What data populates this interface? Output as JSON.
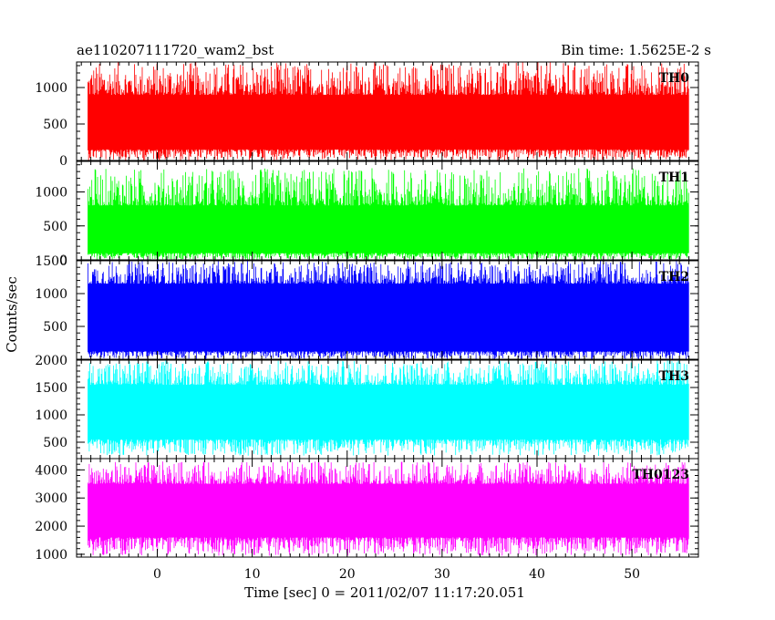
{
  "chart_data": {
    "type": "line",
    "title_left": "ae110207111720_wam2_bst",
    "title_right": "Bin time: 1.5625E-2 s",
    "xlabel": "Time [sec] 0 = 2011/02/07 11:17:20.051",
    "ylabel": "Counts/sec",
    "xlim": [
      -8.5,
      57
    ],
    "data_x_range": [
      -7.3,
      56
    ],
    "x_ticks": [
      0,
      10,
      20,
      30,
      40,
      50
    ],
    "x_tick_labels": [
      "0",
      "10",
      "20",
      "30",
      "40",
      "50"
    ],
    "panels": [
      {
        "label": "TH0",
        "color": "#ff0000",
        "ylim": [
          0,
          1350
        ],
        "y_ticks": [
          0,
          500,
          1000
        ],
        "y_tick_labels": [
          "0",
          "500",
          "1000"
        ],
        "baseline_low": 150,
        "baseline_high": 900,
        "spike_low": 0,
        "spike_high": 1350
      },
      {
        "label": "TH1",
        "color": "#00ff00",
        "ylim": [
          0,
          1450
        ],
        "y_ticks": [
          0,
          500,
          1000
        ],
        "y_tick_labels": [
          "0",
          "500",
          "1000"
        ],
        "baseline_low": 100,
        "baseline_high": 800,
        "spike_low": 0,
        "spike_high": 1350
      },
      {
        "label": "TH2",
        "color": "#0000ff",
        "ylim": [
          0,
          1500
        ],
        "y_ticks": [
          500,
          1000,
          1500
        ],
        "y_tick_labels": [
          "500",
          "1000",
          "1500"
        ],
        "baseline_low": 120,
        "baseline_high": 1150,
        "spike_low": 0,
        "spike_high": 1500
      },
      {
        "label": "TH3",
        "color": "#00ffff",
        "ylim": [
          200,
          2000
        ],
        "y_ticks": [
          500,
          1000,
          1500,
          2000
        ],
        "y_tick_labels": [
          "500",
          "1000",
          "1500",
          "2000"
        ],
        "baseline_low": 550,
        "baseline_high": 1550,
        "spike_low": 250,
        "spike_high": 2000
      },
      {
        "label": "TH0123",
        "color": "#ff00ff",
        "ylim": [
          900,
          4400
        ],
        "y_ticks": [
          1000,
          2000,
          3000,
          4000
        ],
        "y_tick_labels": [
          "1000",
          "2000",
          "3000",
          "4000"
        ],
        "baseline_low": 1600,
        "baseline_high": 3500,
        "spike_low": 950,
        "spike_high": 4300
      }
    ]
  }
}
